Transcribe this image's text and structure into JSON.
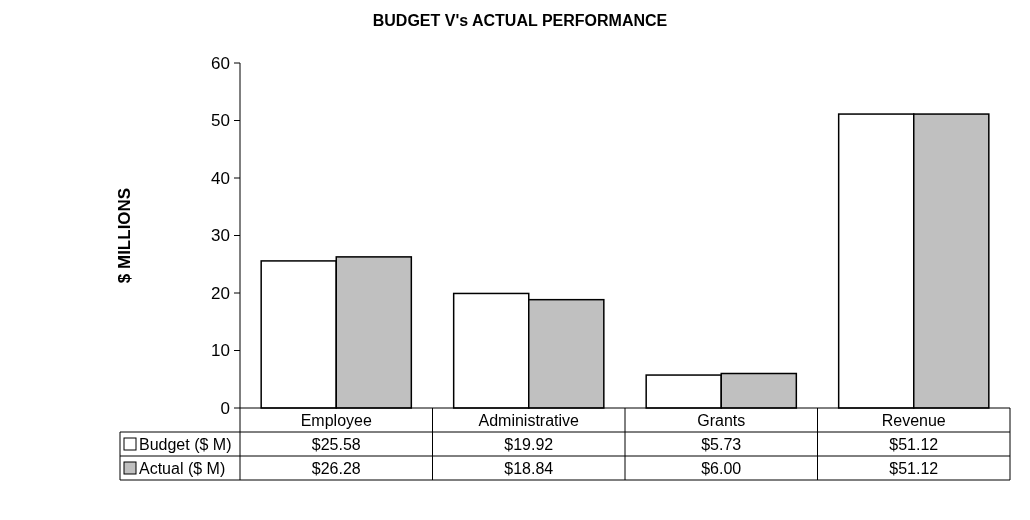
{
  "chart_data": {
    "type": "bar",
    "title": "BUDGET V's ACTUAL PERFORMANCE",
    "ylabel": "$ MILLIONS",
    "categories": [
      "Employee",
      "Administrative",
      "Grants",
      "Revenue"
    ],
    "series": [
      {
        "name": "Budget ($ M)",
        "color": "#ffffff",
        "values": [
          25.58,
          19.92,
          5.73,
          51.12
        ],
        "value_labels": [
          "$25.58",
          "$19.92",
          "$5.73",
          "$51.12"
        ]
      },
      {
        "name": "Actual ($ M)",
        "color": "#c0c0c0",
        "values": [
          26.28,
          18.84,
          6.0,
          51.12
        ],
        "value_labels": [
          "$26.28",
          "$18.84",
          "$6.00",
          "$51.12"
        ]
      }
    ],
    "ylim": [
      0,
      60
    ],
    "yticks": [
      0,
      10,
      20,
      30,
      40,
      50,
      60
    ],
    "legend": "bottom"
  }
}
